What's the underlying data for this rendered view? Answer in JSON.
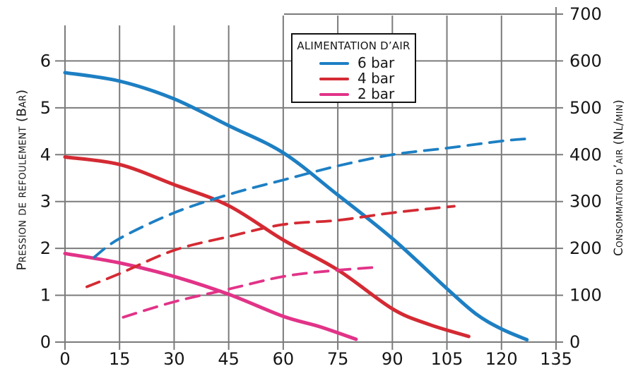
{
  "legend": {
    "title": "ALIMENTATION D’AIR",
    "items": [
      {
        "label": "6 bar",
        "color": "#1d7fc3"
      },
      {
        "label": "4 bar",
        "color": "#d42a33"
      },
      {
        "label": "2 bar",
        "color": "#e23388"
      }
    ]
  },
  "axes": {
    "left_title": "Pression de refoulement (Bar)",
    "right_title": "Consommation d’air (Nl/min)"
  },
  "colors": {
    "grid": "#7b7b7b",
    "text": "#161616",
    "blue": "#1d7fc3",
    "red": "#d42a33",
    "magenta": "#e23388"
  },
  "chart_data": {
    "type": "line",
    "title": "",
    "xlabel": "",
    "x_axis": {
      "min": 0,
      "max": 135,
      "ticks": [
        0,
        15,
        30,
        45,
        60,
        75,
        90,
        105,
        120,
        135
      ]
    },
    "y_left": {
      "label": "Pression de refoulement (Bar)",
      "min": 0,
      "max": 7,
      "ticks": [
        0,
        1,
        2,
        3,
        4,
        5,
        6
      ]
    },
    "y_right": {
      "label": "Consommation d'air (Nl/min)",
      "min": 0,
      "max": 700,
      "ticks": [
        0,
        100,
        200,
        300,
        400,
        500,
        600,
        700
      ]
    },
    "grid": true,
    "legend_position": "top-center",
    "series": [
      {
        "name": "6 bar - pression de refoulement",
        "axis": "left",
        "style": "solid",
        "color": "#1d7fc3",
        "points": [
          [
            0,
            5.75
          ],
          [
            15,
            5.57
          ],
          [
            30,
            5.19
          ],
          [
            45,
            4.62
          ],
          [
            60,
            4.04
          ],
          [
            75,
            3.14
          ],
          [
            90,
            2.21
          ],
          [
            105,
            1.14
          ],
          [
            113,
            0.6
          ],
          [
            120,
            0.28
          ],
          [
            127,
            0.05
          ]
        ]
      },
      {
        "name": "4 bar - pression de refoulement",
        "axis": "left",
        "style": "solid",
        "color": "#d42a33",
        "points": [
          [
            0,
            3.95
          ],
          [
            15,
            3.79
          ],
          [
            30,
            3.36
          ],
          [
            45,
            2.91
          ],
          [
            60,
            2.18
          ],
          [
            75,
            1.54
          ],
          [
            90,
            0.71
          ],
          [
            100,
            0.38
          ],
          [
            111,
            0.12
          ]
        ]
      },
      {
        "name": "2 bar - pression de refoulement",
        "axis": "left",
        "style": "solid",
        "color": "#e23388",
        "points": [
          [
            0,
            1.89
          ],
          [
            15,
            1.69
          ],
          [
            30,
            1.4
          ],
          [
            45,
            1.02
          ],
          [
            60,
            0.55
          ],
          [
            70,
            0.33
          ],
          [
            80,
            0.06
          ]
        ]
      },
      {
        "name": "6 bar - consommation d'air",
        "axis": "right",
        "style": "dashed",
        "color": "#1d7fc3",
        "points": [
          [
            8,
            181
          ],
          [
            15,
            221
          ],
          [
            30,
            276
          ],
          [
            45,
            315
          ],
          [
            60,
            346
          ],
          [
            75,
            376
          ],
          [
            90,
            400
          ],
          [
            105,
            414
          ],
          [
            120,
            429
          ],
          [
            127,
            434
          ]
        ]
      },
      {
        "name": "4 bar - consommation d'air",
        "axis": "right",
        "style": "dashed",
        "color": "#d42a33",
        "points": [
          [
            6,
            118
          ],
          [
            15,
            146
          ],
          [
            30,
            196
          ],
          [
            45,
            225
          ],
          [
            60,
            251
          ],
          [
            75,
            260
          ],
          [
            90,
            276
          ],
          [
            107,
            290
          ]
        ]
      },
      {
        "name": "2 bar - consommation d'air",
        "axis": "right",
        "style": "dashed",
        "color": "#e23388",
        "points": [
          [
            16,
            53
          ],
          [
            30,
            86
          ],
          [
            45,
            113
          ],
          [
            60,
            140
          ],
          [
            73,
            152
          ],
          [
            86,
            160
          ]
        ]
      }
    ]
  }
}
